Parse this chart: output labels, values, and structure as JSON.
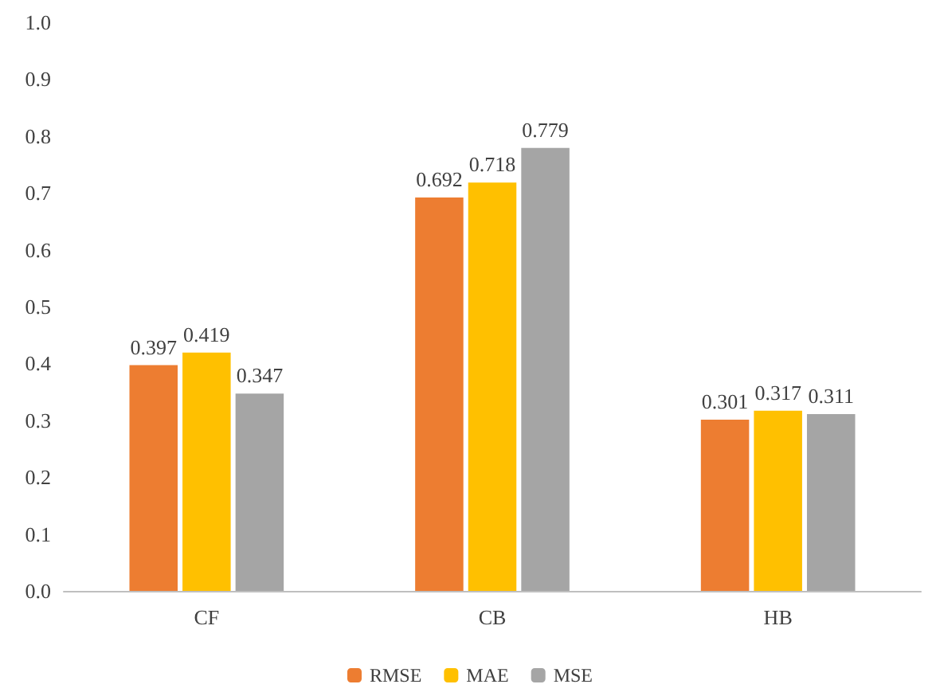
{
  "chart_data": {
    "type": "bar",
    "categories": [
      "CF",
      "CB",
      "HB"
    ],
    "series": [
      {
        "name": "RMSE",
        "color": "#ed7d31",
        "values": [
          0.397,
          0.692,
          0.301
        ]
      },
      {
        "name": "MAE",
        "color": "#ffc000",
        "values": [
          0.419,
          0.718,
          0.317
        ]
      },
      {
        "name": "MSE",
        "color": "#a5a5a5",
        "values": [
          0.347,
          0.779,
          0.311
        ]
      }
    ],
    "ylim": [
      0,
      1
    ],
    "yticks": [
      {
        "value": 0,
        "label": "0.0"
      },
      {
        "value": 0.1,
        "label": "0.1"
      },
      {
        "value": 0.2,
        "label": "0.2"
      },
      {
        "value": 0.3,
        "label": "0.3"
      },
      {
        "value": 0.4,
        "label": "0.4"
      },
      {
        "value": 0.5,
        "label": "0.5"
      },
      {
        "value": 0.6,
        "label": "0.6"
      },
      {
        "value": 0.7,
        "label": "0.7"
      },
      {
        "value": 0.8,
        "label": "0.8"
      },
      {
        "value": 0.9,
        "label": "0.9"
      },
      {
        "value": 1,
        "label": "1.0"
      }
    ],
    "data_labels": true,
    "grid": false,
    "legend": "bottom"
  }
}
